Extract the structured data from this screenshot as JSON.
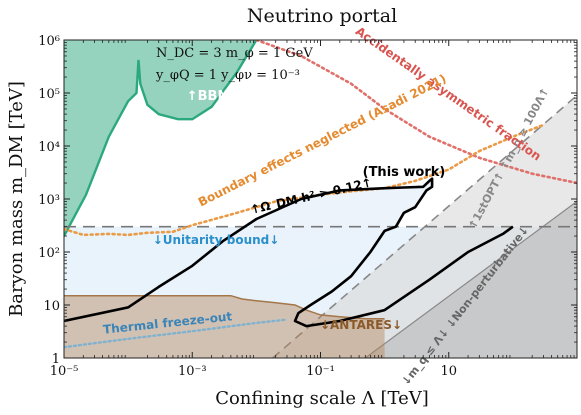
{
  "chart_data": {
    "type": "area",
    "title": "Neutrino portal",
    "xlabel": "Confining scale Λ [TeV]",
    "ylabel": "Baryon mass m_DM [TeV]",
    "xscale": "log",
    "yscale": "log",
    "xlim": [
      1e-05,
      1000
    ],
    "ylim": [
      1,
      1000000
    ],
    "x_ticks": [
      {
        "v": 1e-05,
        "label": "10⁻⁵"
      },
      {
        "v": 0.001,
        "label": "10⁻³"
      },
      {
        "v": 0.1,
        "label": "10⁻¹"
      },
      {
        "v": 10,
        "label": "10"
      }
    ],
    "y_ticks": [
      {
        "v": 1,
        "label": "1"
      },
      {
        "v": 10,
        "label": "10"
      },
      {
        "v": 100,
        "label": "10²"
      },
      {
        "v": 1000,
        "label": "10³"
      },
      {
        "v": 10000,
        "label": "10⁴"
      },
      {
        "v": 100000,
        "label": "10⁵"
      },
      {
        "v": 1000000,
        "label": "10⁶"
      }
    ],
    "grid": false,
    "legend": "none",
    "params": {
      "line1": "N_DC = 3    m_φ = 1 GeV",
      "line2": "y_φQ = 1    y_φν = 10⁻³"
    },
    "regions": [
      {
        "name": "BBN",
        "label": "↑BBN↑",
        "color": "#2ca87f",
        "boundary": [
          [
            1e-05,
            200
          ],
          [
            2.2e-05,
            1200
          ],
          [
            5e-05,
            15000
          ],
          [
            0.0001,
            70000
          ],
          [
            0.000135,
            100000
          ],
          [
            0.000145,
            420000
          ],
          [
            0.000155,
            150000
          ],
          [
            0.0002,
            60000
          ],
          [
            0.0003,
            40000
          ],
          [
            0.0006,
            32000
          ],
          [
            0.001,
            32000
          ],
          [
            0.002,
            55000
          ],
          [
            0.005,
            250000
          ],
          [
            0.01,
            1000000
          ]
        ]
      },
      {
        "name": "Unitarity",
        "label": "↓Unitarity bound↓",
        "color": "#d6e9f8",
        "y": 300
      },
      {
        "name": "Thermal freeze-out",
        "label": "Thermal freeze-out",
        "color": "#7fb2cf",
        "curve": [
          [
            1e-05,
            1.6
          ],
          [
            0.0001,
            2.3
          ],
          [
            0.001,
            3.2
          ],
          [
            0.01,
            4.6
          ],
          [
            0.03,
            5.3
          ]
        ]
      },
      {
        "name": "ANTARES",
        "label": "↓ANTARES↓",
        "color": "#b5865c",
        "boundary": [
          [
            1e-05,
            15
          ],
          [
            0.004,
            15
          ],
          [
            0.006,
            13
          ],
          [
            0.01,
            12
          ],
          [
            0.02,
            11
          ],
          [
            0.04,
            10
          ],
          [
            0.06,
            8
          ],
          [
            0.1,
            6.5
          ],
          [
            0.2,
            6
          ],
          [
            0.5,
            5.5
          ],
          [
            1,
            5.5
          ]
        ]
      },
      {
        "name": "Non-perturbative",
        "label": "↓m_q ≤ Λ↓  ↓Non-perturbative↓",
        "color": "#c4c4c4",
        "line": [
          [
            0.5,
            1
          ],
          [
            1000,
            900
          ]
        ]
      },
      {
        "name": "1stOPT",
        "label": "↑1stOPT↑  ↑m_q ≥ 100Λ↑",
        "color": "#8f8f8f",
        "line": [
          [
            0.018,
            1
          ],
          [
            1000,
            90000
          ]
        ]
      },
      {
        "name": "Accidentally asymmetric fraction",
        "label": "Accidentally asymmetric fraction",
        "color": "#e0706a",
        "curve": [
          [
            0.01,
            1000000
          ],
          [
            0.05,
            500000
          ],
          [
            0.3,
            150000
          ],
          [
            1,
            50000
          ],
          [
            5,
            15000
          ],
          [
            30,
            6000
          ],
          [
            200,
            3000
          ],
          [
            1000,
            2000
          ]
        ]
      },
      {
        "name": "Boundary effects neglected",
        "label": "Boundary effects neglected (Asadi 2021)",
        "color": "#eb9a45",
        "curve": [
          [
            1e-05,
            270
          ],
          [
            2e-05,
            210
          ],
          [
            5e-05,
            220
          ],
          [
            0.0001,
            210
          ],
          [
            0.0002,
            230
          ],
          [
            0.0005,
            240
          ],
          [
            0.001,
            320
          ],
          [
            0.005,
            550
          ],
          [
            0.02,
            900
          ],
          [
            0.1,
            1200
          ],
          [
            0.3,
            1400
          ],
          [
            1,
            1600
          ],
          [
            3,
            2200
          ],
          [
            10,
            3600
          ],
          [
            30,
            8000
          ],
          [
            100,
            15000
          ],
          [
            300,
            25000
          ]
        ]
      },
      {
        "name": "This work",
        "label": "(This work)",
        "annotation": "↑Ω_DM h² > 0.12↑",
        "color": "#000000",
        "boundary": [
          [
            1e-05,
            5
          ],
          [
            0.0001,
            9
          ],
          [
            0.0003,
            22
          ],
          [
            0.001,
            55
          ],
          [
            0.003,
            160
          ],
          [
            0.01,
            420
          ],
          [
            0.05,
            1000
          ],
          [
            0.2,
            1450
          ],
          [
            1,
            1600
          ],
          [
            2,
            1650
          ],
          [
            4,
            1700
          ],
          [
            5,
            2200
          ],
          [
            5.5,
            2400
          ],
          [
            5.5,
            1700
          ],
          [
            4.5,
            1450
          ],
          [
            3,
            700
          ],
          [
            2,
            550
          ],
          [
            1.5,
            300
          ],
          [
            1,
            250
          ],
          [
            0.6,
            100
          ],
          [
            0.3,
            35
          ],
          [
            0.15,
            18
          ],
          [
            0.07,
            10
          ],
          [
            0.045,
            7
          ],
          [
            0.04,
            5
          ],
          [
            0.06,
            4
          ],
          [
            0.2,
            5
          ],
          [
            1,
            8
          ],
          [
            5,
            30
          ],
          [
            20,
            100
          ],
          [
            70,
            220
          ],
          [
            100,
            300
          ]
        ]
      }
    ]
  }
}
